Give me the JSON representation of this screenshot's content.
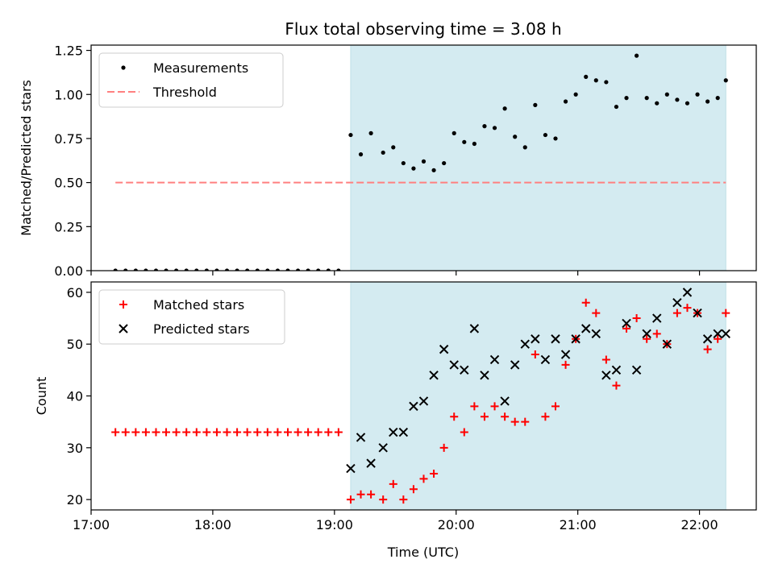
{
  "chart_data": [
    {
      "type": "scatter",
      "title": "Flux total observing time = 3.08 h",
      "xlabel": "",
      "ylabel": "Matched/Predicted stars",
      "xlim": [
        "17:00",
        "22:28"
      ],
      "ylim": [
        0,
        1.28
      ],
      "yticks": [
        "0.00",
        "0.25",
        "0.50",
        "0.75",
        "1.00",
        "1.25"
      ],
      "x_tick_labels_shown": false,
      "shaded_region": {
        "x_start": "19:08",
        "x_end": "22:13",
        "color": "#d4ebf1"
      },
      "legend": {
        "placement": "top-left",
        "entries": [
          "Measurements",
          "Threshold"
        ]
      },
      "threshold": {
        "name": "Threshold",
        "value": 0.5,
        "x_start": "17:12",
        "x_end": "22:13",
        "color": "#ff8080"
      },
      "series": [
        {
          "name": "Measurements",
          "color": "#000000",
          "points": [
            [
              "17:12",
              0.0
            ],
            [
              "17:17",
              0.0
            ],
            [
              "17:22",
              0.0
            ],
            [
              "17:27",
              0.0
            ],
            [
              "17:32",
              0.0
            ],
            [
              "17:37",
              0.0
            ],
            [
              "17:42",
              0.0
            ],
            [
              "17:47",
              0.0
            ],
            [
              "17:52",
              0.0
            ],
            [
              "17:57",
              0.0
            ],
            [
              "18:02",
              0.0
            ],
            [
              "18:07",
              0.0
            ],
            [
              "18:12",
              0.0
            ],
            [
              "18:17",
              0.0
            ],
            [
              "18:22",
              0.0
            ],
            [
              "18:27",
              0.0
            ],
            [
              "18:32",
              0.0
            ],
            [
              "18:37",
              0.0
            ],
            [
              "18:42",
              0.0
            ],
            [
              "18:47",
              0.0
            ],
            [
              "18:52",
              0.0
            ],
            [
              "18:57",
              0.0
            ],
            [
              "19:02",
              0.0
            ],
            [
              "19:08",
              0.77
            ],
            [
              "19:13",
              0.66
            ],
            [
              "19:18",
              0.78
            ],
            [
              "19:24",
              0.67
            ],
            [
              "19:29",
              0.7
            ],
            [
              "19:34",
              0.61
            ],
            [
              "19:39",
              0.58
            ],
            [
              "19:44",
              0.62
            ],
            [
              "19:49",
              0.57
            ],
            [
              "19:54",
              0.61
            ],
            [
              "19:59",
              0.78
            ],
            [
              "20:04",
              0.73
            ],
            [
              "20:09",
              0.72
            ],
            [
              "20:14",
              0.82
            ],
            [
              "20:19",
              0.81
            ],
            [
              "20:24",
              0.92
            ],
            [
              "20:29",
              0.76
            ],
            [
              "20:34",
              0.7
            ],
            [
              "20:39",
              0.94
            ],
            [
              "20:44",
              0.77
            ],
            [
              "20:49",
              0.75
            ],
            [
              "20:54",
              0.96
            ],
            [
              "20:59",
              1.0
            ],
            [
              "21:04",
              1.1
            ],
            [
              "21:09",
              1.08
            ],
            [
              "21:14",
              1.07
            ],
            [
              "21:19",
              0.93
            ],
            [
              "21:24",
              0.98
            ],
            [
              "21:29",
              1.22
            ],
            [
              "21:34",
              0.98
            ],
            [
              "21:39",
              0.95
            ],
            [
              "21:44",
              1.0
            ],
            [
              "21:49",
              0.97
            ],
            [
              "21:54",
              0.95
            ],
            [
              "21:59",
              1.0
            ],
            [
              "22:04",
              0.96
            ],
            [
              "22:09",
              0.98
            ],
            [
              "22:13",
              1.08
            ]
          ]
        }
      ]
    },
    {
      "type": "scatter",
      "title": "",
      "xlabel": "Time (UTC)",
      "ylabel": "Count",
      "xlim": [
        "17:00",
        "22:28"
      ],
      "ylim": [
        18,
        62
      ],
      "yticks": [
        "20",
        "30",
        "40",
        "50",
        "60"
      ],
      "xticks": [
        "17:00",
        "18:00",
        "19:00",
        "20:00",
        "21:00",
        "22:00"
      ],
      "shaded_region": {
        "x_start": "19:08",
        "x_end": "22:13",
        "color": "#d4ebf1"
      },
      "legend": {
        "placement": "top-left",
        "entries": [
          "Matched stars",
          "Predicted stars"
        ]
      },
      "series": [
        {
          "name": "Matched stars",
          "marker": "plus",
          "color": "#ff0000",
          "points": [
            [
              "17:12",
              33
            ],
            [
              "17:17",
              33
            ],
            [
              "17:22",
              33
            ],
            [
              "17:27",
              33
            ],
            [
              "17:32",
              33
            ],
            [
              "17:37",
              33
            ],
            [
              "17:42",
              33
            ],
            [
              "17:47",
              33
            ],
            [
              "17:52",
              33
            ],
            [
              "17:57",
              33
            ],
            [
              "18:02",
              33
            ],
            [
              "18:07",
              33
            ],
            [
              "18:12",
              33
            ],
            [
              "18:17",
              33
            ],
            [
              "18:22",
              33
            ],
            [
              "18:27",
              33
            ],
            [
              "18:32",
              33
            ],
            [
              "18:37",
              33
            ],
            [
              "18:42",
              33
            ],
            [
              "18:47",
              33
            ],
            [
              "18:52",
              33
            ],
            [
              "18:57",
              33
            ],
            [
              "19:02",
              33
            ],
            [
              "19:08",
              20
            ],
            [
              "19:13",
              21
            ],
            [
              "19:18",
              21
            ],
            [
              "19:24",
              20
            ],
            [
              "19:29",
              23
            ],
            [
              "19:34",
              20
            ],
            [
              "19:39",
              22
            ],
            [
              "19:44",
              24
            ],
            [
              "19:49",
              25
            ],
            [
              "19:54",
              30
            ],
            [
              "19:59",
              36
            ],
            [
              "20:04",
              33
            ],
            [
              "20:09",
              38
            ],
            [
              "20:14",
              36
            ],
            [
              "20:19",
              38
            ],
            [
              "20:24",
              36
            ],
            [
              "20:29",
              35
            ],
            [
              "20:34",
              35
            ],
            [
              "20:39",
              48
            ],
            [
              "20:44",
              36
            ],
            [
              "20:49",
              38
            ],
            [
              "20:54",
              46
            ],
            [
              "20:59",
              51
            ],
            [
              "21:04",
              58
            ],
            [
              "21:09",
              56
            ],
            [
              "21:14",
              47
            ],
            [
              "21:19",
              42
            ],
            [
              "21:24",
              53
            ],
            [
              "21:29",
              55
            ],
            [
              "21:34",
              51
            ],
            [
              "21:39",
              52
            ],
            [
              "21:44",
              50
            ],
            [
              "21:49",
              56
            ],
            [
              "21:54",
              57
            ],
            [
              "21:59",
              56
            ],
            [
              "22:04",
              49
            ],
            [
              "22:09",
              51
            ],
            [
              "22:13",
              56
            ]
          ]
        },
        {
          "name": "Predicted stars",
          "marker": "x",
          "color": "#000000",
          "points": [
            [
              "19:08",
              26
            ],
            [
              "19:13",
              32
            ],
            [
              "19:18",
              27
            ],
            [
              "19:24",
              30
            ],
            [
              "19:29",
              33
            ],
            [
              "19:34",
              33
            ],
            [
              "19:39",
              38
            ],
            [
              "19:44",
              39
            ],
            [
              "19:49",
              44
            ],
            [
              "19:54",
              49
            ],
            [
              "19:59",
              46
            ],
            [
              "20:04",
              45
            ],
            [
              "20:09",
              53
            ],
            [
              "20:14",
              44
            ],
            [
              "20:19",
              47
            ],
            [
              "20:24",
              39
            ],
            [
              "20:29",
              46
            ],
            [
              "20:34",
              50
            ],
            [
              "20:39",
              51
            ],
            [
              "20:44",
              47
            ],
            [
              "20:49",
              51
            ],
            [
              "20:54",
              48
            ],
            [
              "20:59",
              51
            ],
            [
              "21:04",
              53
            ],
            [
              "21:09",
              52
            ],
            [
              "21:14",
              44
            ],
            [
              "21:19",
              45
            ],
            [
              "21:24",
              54
            ],
            [
              "21:29",
              45
            ],
            [
              "21:34",
              52
            ],
            [
              "21:39",
              55
            ],
            [
              "21:44",
              50
            ],
            [
              "21:49",
              58
            ],
            [
              "21:54",
              60
            ],
            [
              "21:59",
              56
            ],
            [
              "22:04",
              51
            ],
            [
              "22:09",
              52
            ],
            [
              "22:13",
              52
            ]
          ]
        }
      ]
    }
  ]
}
